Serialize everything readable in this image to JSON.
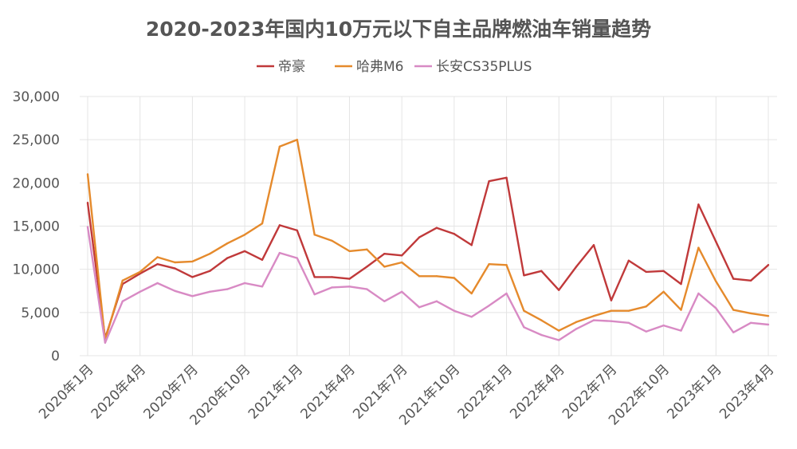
{
  "chart_data": {
    "type": "line",
    "title": "2020-2023年国内10万元以下自主品牌燃油车销量趋势",
    "xlabel": "",
    "ylabel": "",
    "ylim": [
      0,
      30000
    ],
    "yticks": [
      0,
      5000,
      10000,
      15000,
      20000,
      25000,
      30000
    ],
    "ytick_labels": [
      "0",
      "5,000",
      "10,000",
      "15,000",
      "20,000",
      "25,000",
      "30,000"
    ],
    "grid": true,
    "legend_position": "top-center",
    "x_count": 40,
    "xtick_indices": [
      0,
      3,
      6,
      9,
      12,
      15,
      18,
      21,
      24,
      27,
      30,
      33,
      36,
      39
    ],
    "xtick_labels": [
      "2020年1月",
      "2020年4月",
      "2020年7月",
      "2020年10月",
      "2021年1月",
      "2021年4月",
      "2021年7月",
      "2021年10月",
      "2022年1月",
      "2022年4月",
      "2022年7月",
      "2022年10月",
      "2023年1月",
      "2023年4月"
    ],
    "series": [
      {
        "name": "帝豪",
        "color": "#c0393a",
        "values": [
          17700,
          2000,
          8300,
          9500,
          10600,
          10100,
          9100,
          9800,
          11300,
          12100,
          11100,
          15100,
          14500,
          9100,
          9100,
          8900,
          10300,
          11800,
          11600,
          13700,
          14800,
          14100,
          12800,
          20200,
          20600,
          9300,
          9800,
          7600,
          10300,
          12800,
          6400,
          11000,
          9700,
          9800,
          8300,
          17500,
          13200,
          8900,
          8700,
          10500
        ]
      },
      {
        "name": "哈弗M6",
        "color": "#e58a2c",
        "values": [
          21000,
          1800,
          8700,
          9700,
          11400,
          10800,
          10900,
          11800,
          13000,
          14000,
          15300,
          24200,
          25000,
          14000,
          13300,
          12100,
          12300,
          10300,
          10800,
          9200,
          9200,
          9000,
          7200,
          10600,
          10500,
          5200,
          4100,
          2900,
          3900,
          4600,
          5200,
          5200,
          5700,
          7400,
          5300,
          12500,
          8600,
          5300,
          4900,
          4600
        ]
      },
      {
        "name": "长安CS35PLUS",
        "color": "#d88ac4",
        "values": [
          14900,
          1500,
          6300,
          7400,
          8400,
          7500,
          6900,
          7400,
          7700,
          8400,
          8000,
          11900,
          11300,
          7100,
          7900,
          8000,
          7700,
          6300,
          7400,
          5600,
          6300,
          5200,
          4500,
          5800,
          7200,
          3300,
          2400,
          1800,
          3100,
          4100,
          4000,
          3800,
          2800,
          3500,
          2900,
          7200,
          5500,
          2700,
          3800,
          3600
        ]
      }
    ]
  }
}
